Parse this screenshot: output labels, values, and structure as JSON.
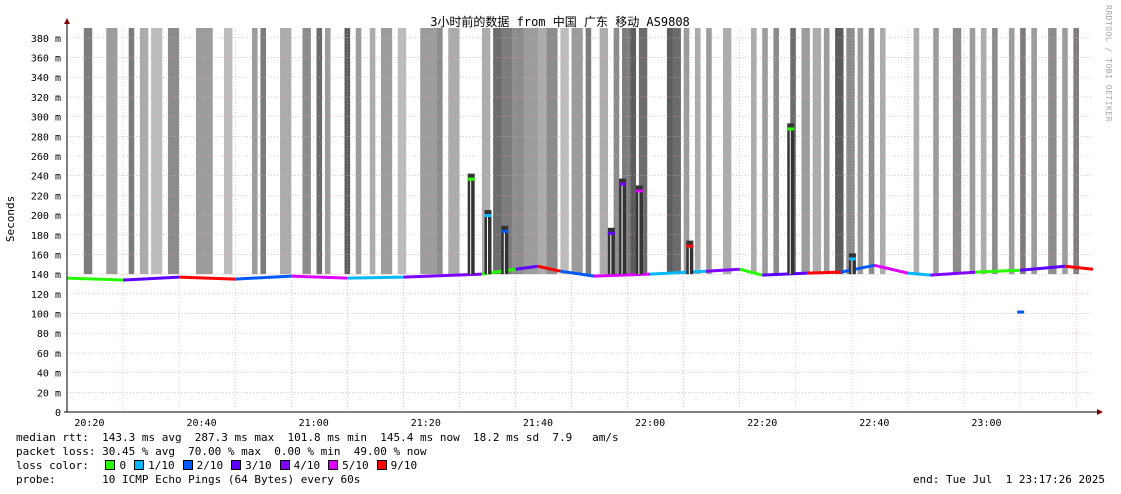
{
  "chart_data": {
    "type": "line",
    "title": "3小时前的数据 from 中国 广东 移动 AS9808",
    "ylabel": "Seconds",
    "xlabel": "",
    "ylim": [
      0,
      390
    ],
    "y_ticks": [
      "0",
      "20 m",
      "40 m",
      "60 m",
      "80 m",
      "100 m",
      "120 m",
      "140 m",
      "160 m",
      "180 m",
      "200 m",
      "220 m",
      "240 m",
      "260 m",
      "280 m",
      "300 m",
      "320 m",
      "340 m",
      "360 m",
      "380 m"
    ],
    "x_ticks": [
      "20:20",
      "20:40",
      "21:00",
      "21:20",
      "21:40",
      "22:00",
      "22:20",
      "22:40",
      "23:00"
    ],
    "x_start_minutes": 1216,
    "x_end_minutes": 1399,
    "grid": true,
    "series": [
      {
        "name": "median rtt",
        "x": [
          1216,
          1226,
          1236,
          1246,
          1256,
          1266,
          1276,
          1290,
          1296,
          1300,
          1304,
          1310,
          1320,
          1330,
          1336,
          1340,
          1348,
          1354,
          1360,
          1366,
          1370,
          1378,
          1386,
          1394,
          1399
        ],
        "values": [
          136,
          134,
          137,
          135,
          138,
          136,
          137,
          140,
          145,
          148,
          143,
          138,
          140,
          143,
          145,
          139,
          141,
          142,
          149,
          141,
          139,
          142,
          144,
          148,
          145
        ]
      }
    ],
    "spikes": [
      {
        "x": 1288,
        "y": 236
      },
      {
        "x": 1291,
        "y": 199
      },
      {
        "x": 1294,
        "y": 183
      },
      {
        "x": 1313,
        "y": 181
      },
      {
        "x": 1315,
        "y": 231
      },
      {
        "x": 1318,
        "y": 224
      },
      {
        "x": 1327,
        "y": 168
      },
      {
        "x": 1345,
        "y": 287
      },
      {
        "x": 1356,
        "y": 155
      },
      {
        "x": 1386,
        "y": 101
      }
    ],
    "loss_bands": [
      {
        "x": 1219,
        "w": 1.5,
        "level": 0.6
      },
      {
        "x": 1223,
        "w": 2,
        "level": 0.4
      },
      {
        "x": 1227,
        "w": 1,
        "level": 0.6
      },
      {
        "x": 1229,
        "w": 1.5,
        "level": 0.3
      },
      {
        "x": 1231,
        "w": 2,
        "level": 0.2
      },
      {
        "x": 1234,
        "w": 2,
        "level": 0.5
      },
      {
        "x": 1239,
        "w": 3,
        "level": 0.4
      },
      {
        "x": 1244,
        "w": 1.5,
        "level": 0.2
      },
      {
        "x": 1249,
        "w": 1,
        "level": 0.4
      },
      {
        "x": 1250.5,
        "w": 1,
        "level": 0.6
      },
      {
        "x": 1254,
        "w": 2,
        "level": 0.3
      },
      {
        "x": 1258,
        "w": 1.5,
        "level": 0.5
      },
      {
        "x": 1260.5,
        "w": 1,
        "level": 0.7
      },
      {
        "x": 1262,
        "w": 1,
        "level": 0.4
      },
      {
        "x": 1265.5,
        "w": 1,
        "level": 0.8
      },
      {
        "x": 1267.5,
        "w": 1,
        "level": 0.4
      },
      {
        "x": 1270,
        "w": 1,
        "level": 0.3
      },
      {
        "x": 1272,
        "w": 2,
        "level": 0.4
      },
      {
        "x": 1275,
        "w": 1.5,
        "level": 0.2
      },
      {
        "x": 1279,
        "w": 3,
        "level": 0.4
      },
      {
        "x": 1282,
        "w": 1,
        "level": 0.5
      },
      {
        "x": 1284,
        "w": 2,
        "level": 0.3
      },
      {
        "x": 1290,
        "w": 1.5,
        "level": 0.3
      },
      {
        "x": 1292,
        "w": 1.5,
        "level": 0.7
      },
      {
        "x": 1293.5,
        "w": 2,
        "level": 0.6
      },
      {
        "x": 1295.5,
        "w": 2,
        "level": 0.5
      },
      {
        "x": 1297.5,
        "w": 2.5,
        "level": 0.4
      },
      {
        "x": 1300,
        "w": 1.5,
        "level": 0.3
      },
      {
        "x": 1301.5,
        "w": 2,
        "level": 0.5
      },
      {
        "x": 1304,
        "w": 1.5,
        "level": 0.2
      },
      {
        "x": 1306,
        "w": 2,
        "level": 0.4
      },
      {
        "x": 1308.5,
        "w": 1,
        "level": 0.6
      },
      {
        "x": 1311,
        "w": 1.5,
        "level": 0.3
      },
      {
        "x": 1313.5,
        "w": 1,
        "level": 0.5
      },
      {
        "x": 1315,
        "w": 1.5,
        "level": 0.6
      },
      {
        "x": 1316.5,
        "w": 1,
        "level": 0.8
      },
      {
        "x": 1318,
        "w": 1.5,
        "level": 0.7
      },
      {
        "x": 1323,
        "w": 1,
        "level": 0.8
      },
      {
        "x": 1324,
        "w": 1.5,
        "level": 0.7
      },
      {
        "x": 1326,
        "w": 1,
        "level": 0.4
      },
      {
        "x": 1328,
        "w": 1,
        "level": 0.3
      },
      {
        "x": 1330,
        "w": 1,
        "level": 0.4
      },
      {
        "x": 1333,
        "w": 1.5,
        "level": 0.3
      },
      {
        "x": 1338,
        "w": 1,
        "level": 0.3
      },
      {
        "x": 1340,
        "w": 1,
        "level": 0.4
      },
      {
        "x": 1342,
        "w": 1,
        "level": 0.5
      },
      {
        "x": 1345,
        "w": 1,
        "level": 0.7
      },
      {
        "x": 1347,
        "w": 1.5,
        "level": 0.4
      },
      {
        "x": 1349,
        "w": 1.5,
        "level": 0.3
      },
      {
        "x": 1351,
        "w": 1,
        "level": 0.4
      },
      {
        "x": 1353,
        "w": 1.5,
        "level": 0.8
      },
      {
        "x": 1355,
        "w": 1.5,
        "level": 0.5
      },
      {
        "x": 1357,
        "w": 1,
        "level": 0.4
      },
      {
        "x": 1359,
        "w": 1,
        "level": 0.5
      },
      {
        "x": 1361,
        "w": 1,
        "level": 0.3
      },
      {
        "x": 1367,
        "w": 1,
        "level": 0.3
      },
      {
        "x": 1370.5,
        "w": 1,
        "level": 0.4
      },
      {
        "x": 1374,
        "w": 1.5,
        "level": 0.5
      },
      {
        "x": 1377,
        "w": 1,
        "level": 0.4
      },
      {
        "x": 1379,
        "w": 1,
        "level": 0.3
      },
      {
        "x": 1381,
        "w": 1,
        "level": 0.5
      },
      {
        "x": 1384,
        "w": 1,
        "level": 0.4
      },
      {
        "x": 1386,
        "w": 1,
        "level": 0.6
      },
      {
        "x": 1388,
        "w": 1,
        "level": 0.4
      },
      {
        "x": 1391,
        "w": 1.5,
        "level": 0.5
      },
      {
        "x": 1393.5,
        "w": 1,
        "level": 0.4
      },
      {
        "x": 1395.5,
        "w": 1,
        "level": 0.6
      }
    ],
    "colors": {
      "background": "#ffffff",
      "grid": "#e8a0a0",
      "axis": "#000000",
      "arrow": "#800000",
      "loss_0": "#26ff00",
      "loss_1": "#00b8ff",
      "loss_2": "#0059ff",
      "loss_3": "#5e00ff",
      "loss_4": "#7e00ff",
      "loss_5": "#dd00ff",
      "loss_9": "#ff0000"
    }
  },
  "stats": {
    "median_rtt": "median rtt:  143.3 ms avg  287.3 ms max  101.8 ms min  145.4 ms now  18.2 ms sd  7.9   am/s",
    "packet_loss": "packet loss: 30.45 % avg  70.00 % max  0.00 % min  49.00 % now"
  },
  "legend": {
    "label": "loss color:",
    "items": [
      {
        "text": "0",
        "color": "#26ff00"
      },
      {
        "text": "1/10",
        "color": "#00b8ff"
      },
      {
        "text": "2/10",
        "color": "#0059ff"
      },
      {
        "text": "3/10",
        "color": "#5e00ff"
      },
      {
        "text": "4/10",
        "color": "#7e00ff"
      },
      {
        "text": "5/10",
        "color": "#dd00ff"
      },
      {
        "text": "9/10",
        "color": "#ff0000"
      }
    ]
  },
  "probe": "probe:       10 ICMP Echo Pings (64 Bytes) every 60s",
  "end_time": "end: Tue Jul  1 23:17:26 2025",
  "watermark": "RRDTOOL / TOBI OETIKER"
}
